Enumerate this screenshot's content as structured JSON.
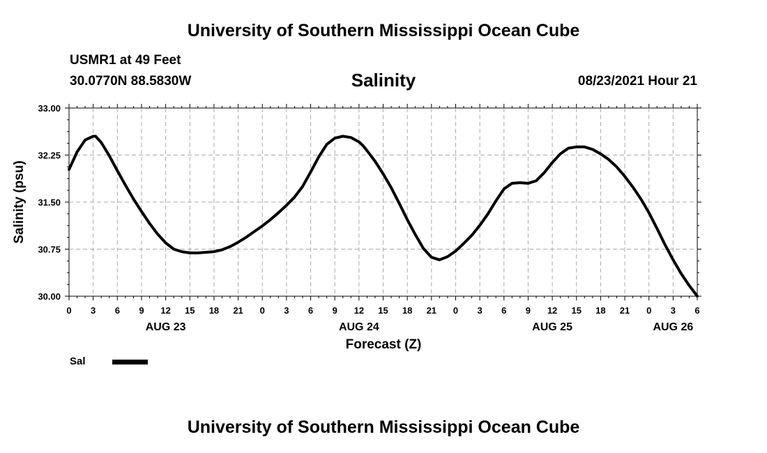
{
  "header": {
    "title": "University of Southern Mississippi Ocean Cube",
    "station": "USMR1 at 49 Feet",
    "coordinates": "30.0770N  88.5830W",
    "variable": "Salinity",
    "datetime": "08/23/2021 Hour 21"
  },
  "footer": {
    "title": "University of Southern Mississippi Ocean Cube"
  },
  "legend": {
    "label": "Sal"
  },
  "chart_data": {
    "type": "line",
    "title": "Salinity",
    "xlabel": "Forecast (Z)",
    "ylabel": "Salinity (psu)",
    "ylim": [
      30.0,
      33.0
    ],
    "yticks": [
      "30.00",
      "30.75",
      "31.50",
      "32.25",
      "33.00"
    ],
    "xlim": [
      0,
      78
    ],
    "xticks": [
      "0",
      "3",
      "6",
      "9",
      "12",
      "15",
      "18",
      "21",
      "0",
      "3",
      "6",
      "9",
      "12",
      "15",
      "18",
      "21",
      "0",
      "3",
      "6",
      "9",
      "12",
      "15",
      "18",
      "21",
      "0",
      "3",
      "6"
    ],
    "day_labels": [
      {
        "hour": 12,
        "label": "AUG 23"
      },
      {
        "hour": 36,
        "label": "AUG 24"
      },
      {
        "hour": 60,
        "label": "AUG 25"
      },
      {
        "hour": 75,
        "label": "AUG 26"
      }
    ],
    "grid": true,
    "series": [
      {
        "name": "Sal",
        "x": [
          0,
          1,
          2,
          3,
          3.3,
          4,
          5,
          6,
          7,
          8,
          9,
          10,
          11,
          12,
          13,
          14,
          15,
          16,
          17,
          18,
          19,
          20,
          21,
          22,
          23,
          24,
          25,
          26,
          27,
          28,
          29,
          30,
          31,
          32,
          33,
          34,
          35,
          36,
          36.5,
          37,
          38,
          39,
          40,
          41,
          42,
          43,
          44,
          45,
          46,
          47,
          48,
          49,
          50,
          51,
          52,
          53,
          54,
          55,
          56,
          57,
          58,
          59,
          60,
          61,
          62,
          63,
          64,
          65,
          66,
          67,
          68,
          69,
          70,
          71,
          72,
          73,
          74,
          75,
          76,
          77,
          78
        ],
        "values": [
          32.02,
          32.3,
          32.49,
          32.55,
          32.55,
          32.45,
          32.24,
          32.0,
          31.77,
          31.55,
          31.35,
          31.16,
          30.99,
          30.85,
          30.75,
          30.71,
          30.69,
          30.69,
          30.7,
          30.71,
          30.74,
          30.79,
          30.86,
          30.94,
          31.03,
          31.12,
          31.22,
          31.33,
          31.45,
          31.58,
          31.75,
          31.98,
          32.22,
          32.42,
          32.52,
          32.55,
          32.53,
          32.46,
          32.4,
          32.32,
          32.15,
          31.95,
          31.73,
          31.48,
          31.22,
          30.98,
          30.76,
          30.62,
          30.58,
          30.63,
          30.72,
          30.84,
          30.97,
          31.13,
          31.31,
          31.52,
          31.71,
          31.8,
          31.81,
          31.8,
          31.84,
          31.97,
          32.13,
          32.27,
          32.36,
          32.38,
          32.38,
          32.34,
          32.27,
          32.18,
          32.06,
          31.91,
          31.74,
          31.55,
          31.33,
          31.08,
          30.82,
          30.58,
          30.36,
          30.17,
          30.0
        ],
        "color": "#000000"
      }
    ]
  }
}
